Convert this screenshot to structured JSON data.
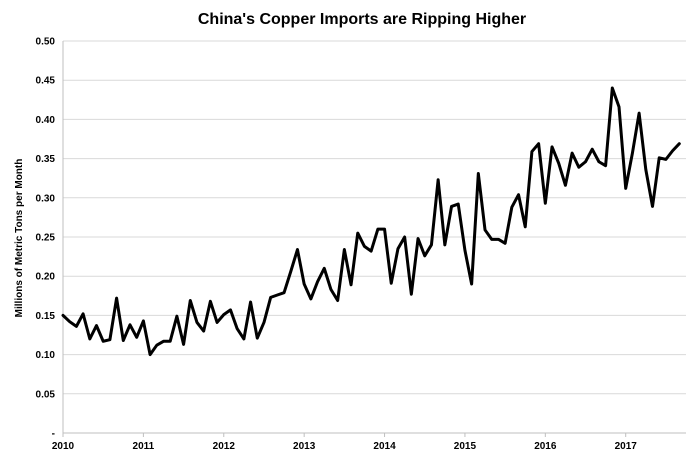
{
  "chart_data": {
    "type": "line",
    "title": "China's Copper Imports are Ripping Higher",
    "xlabel": "",
    "ylabel": "Millions of Metric Tons per Month",
    "ylim": [
      0,
      0.5
    ],
    "xlim": [
      2010,
      2017.75
    ],
    "y_ticks": [
      "-",
      "0.05",
      "0.10",
      "0.15",
      "0.20",
      "0.25",
      "0.30",
      "0.35",
      "0.40",
      "0.45",
      "0.50"
    ],
    "x_ticks": [
      "2010",
      "2011",
      "2012",
      "2013",
      "2014",
      "2015",
      "2016",
      "2017"
    ],
    "grid": true,
    "legend": "none",
    "line_color": "#000000",
    "series": [
      {
        "x_start": 2010,
        "x_step_months": 1,
        "values": [
          0.15,
          0.142,
          0.136,
          0.152,
          0.12,
          0.137,
          0.117,
          0.119,
          0.172,
          0.118,
          0.138,
          0.122,
          0.143,
          0.1,
          0.112,
          0.117,
          0.117,
          0.149,
          0.113,
          0.169,
          0.141,
          0.13,
          0.168,
          0.141,
          0.151,
          0.157,
          0.133,
          0.12,
          0.167,
          0.121,
          0.141,
          0.173,
          0.176,
          0.179,
          0.206,
          0.234,
          0.19,
          0.171,
          0.193,
          0.21,
          0.183,
          0.169,
          0.234,
          0.189,
          0.255,
          0.238,
          0.232,
          0.26,
          0.26,
          0.191,
          0.235,
          0.25,
          0.177,
          0.248,
          0.226,
          0.24,
          0.323,
          0.24,
          0.289,
          0.292,
          0.233,
          0.19,
          0.331,
          0.259,
          0.247,
          0.247,
          0.242,
          0.288,
          0.304,
          0.263,
          0.359,
          0.369,
          0.293,
          0.365,
          0.344,
          0.316,
          0.357,
          0.339,
          0.346,
          0.362,
          0.346,
          0.341,
          0.44,
          0.416,
          0.312,
          0.357,
          0.408,
          0.336,
          0.289,
          0.351,
          0.349,
          0.36,
          0.369
        ]
      }
    ]
  }
}
